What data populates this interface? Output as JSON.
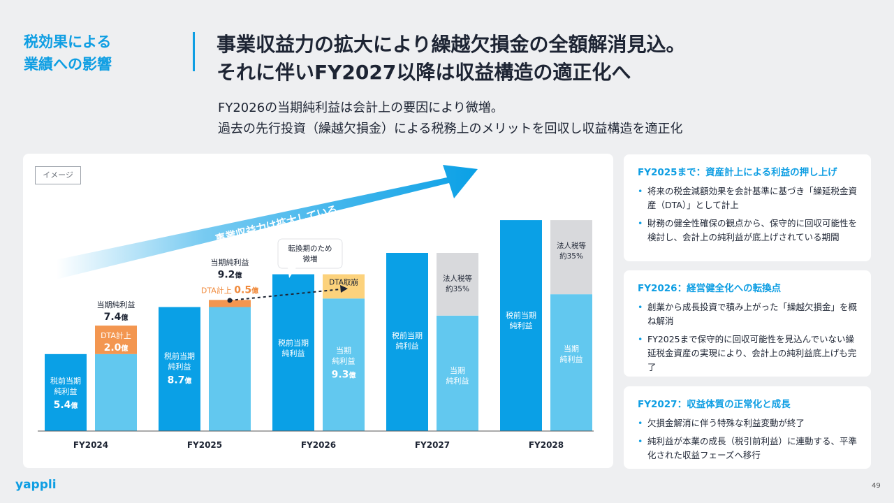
{
  "header": {
    "section_label_line1": "税効果による",
    "section_label_line2": "業績への影響",
    "headline_line1": "事業収益力の拡大により繰越欠損金の全額解消見込。",
    "headline_line2": "それに伴いFY2027以降は収益構造の適正化へ",
    "subtext_line1": "FY2026の当期純利益は会計上の要因により微増。",
    "subtext_line2": "過去の先行投資（繰越欠損金）による税務上のメリットを回収し収益構造を適正化"
  },
  "chart_panel": {
    "image_tag": "イメージ",
    "arrow_label": "事業収益力は拡大している",
    "transition_callout_line1": "転換期のため",
    "transition_callout_line2": "微増"
  },
  "chart_data": {
    "type": "bar",
    "categories": [
      "FY2024",
      "FY2025",
      "FY2026",
      "FY2027",
      "FY2028"
    ],
    "colors": {
      "pretax": "#0aa0e6",
      "net": "#62c8ef",
      "dta": "#f39650",
      "dta_light": "#fcd27c",
      "tax": "#d8d9dc"
    },
    "bars": [
      {
        "category": "FY2024",
        "type": "pretax",
        "label1": "税前当期",
        "label2": "純利益",
        "value_label": "5.4",
        "unit": "億",
        "value": 5.4
      },
      {
        "category": "FY2024",
        "type": "net_dta",
        "label1": "当期",
        "label2": "純利益",
        "net": 5.4,
        "dta": 2.0,
        "dta_label_line1": "DTA計上",
        "dta_value": "2.0",
        "unit": "億",
        "top_label": "当期純利益",
        "top_value": "7.4",
        "total": 7.4
      },
      {
        "category": "FY2025",
        "type": "pretax",
        "label1": "税前当期",
        "label2": "純利益",
        "value_label": "8.7",
        "unit": "億",
        "value": 8.7
      },
      {
        "category": "FY2025",
        "type": "net_dta",
        "net": 8.7,
        "dta": 0.5,
        "dta_label_line1": "DTA計上",
        "dta_value": "0.5",
        "unit": "億",
        "top_label": "当期純利益",
        "top_value": "9.2",
        "total": 9.2
      },
      {
        "category": "FY2026",
        "type": "pretax",
        "label1": "税前当期",
        "label2": "純利益",
        "value": 11.0
      },
      {
        "category": "FY2026",
        "type": "net_dta_reversal",
        "label1": "当期",
        "label2": "純利益",
        "value_label": "9.3",
        "unit": "億",
        "net": 9.3,
        "dta_reversal": 1.7,
        "dta_label": "DTA取崩"
      },
      {
        "category": "FY2027",
        "type": "pretax",
        "label1": "税前当期",
        "label2": "純利益",
        "value": 12.5
      },
      {
        "category": "FY2027",
        "type": "net_tax",
        "label1": "当期",
        "label2": "純利益",
        "net": 8.1,
        "tax": 4.4,
        "tax_label1": "法人税等",
        "tax_label2": "約35%"
      },
      {
        "category": "FY2028",
        "type": "pretax",
        "label1": "税前当期",
        "label2": "純利益",
        "value": 14.8
      },
      {
        "category": "FY2028",
        "type": "net_tax",
        "label1": "当期",
        "label2": "純利益",
        "net": 9.6,
        "tax": 5.2,
        "tax_label1": "法人税等",
        "tax_label2": "約35%"
      }
    ]
  },
  "cards": [
    {
      "title": "FY2025まで：資産計上による利益の押し上げ",
      "items": [
        "将来の税金減額効果を会計基準に基づき「繰延税金資産（DTA）」として計上",
        "財務の健全性確保の観点から、保守的に回収可能性を検討し、会計上の純利益が底上げされている期間"
      ]
    },
    {
      "title": "FY2026：経営健全化への転換点",
      "items": [
        "創業から成長投資で積み上がった「繰越欠損金」を概ね解消",
        "FY2025まで保守的に回収可能性を見込んでいない繰延税金資産の実現により、会計上の純利益底上げも完了"
      ]
    },
    {
      "title": "FY2027：収益体質の正常化と成長",
      "items": [
        "欠損金解消に伴う特殊な利益変動が終了",
        "純利益が本業の成長（税引前利益）に連動する、平準化された収益フェーズへ移行"
      ]
    }
  ],
  "footer": {
    "logo": "yappli",
    "page_number": "49"
  }
}
